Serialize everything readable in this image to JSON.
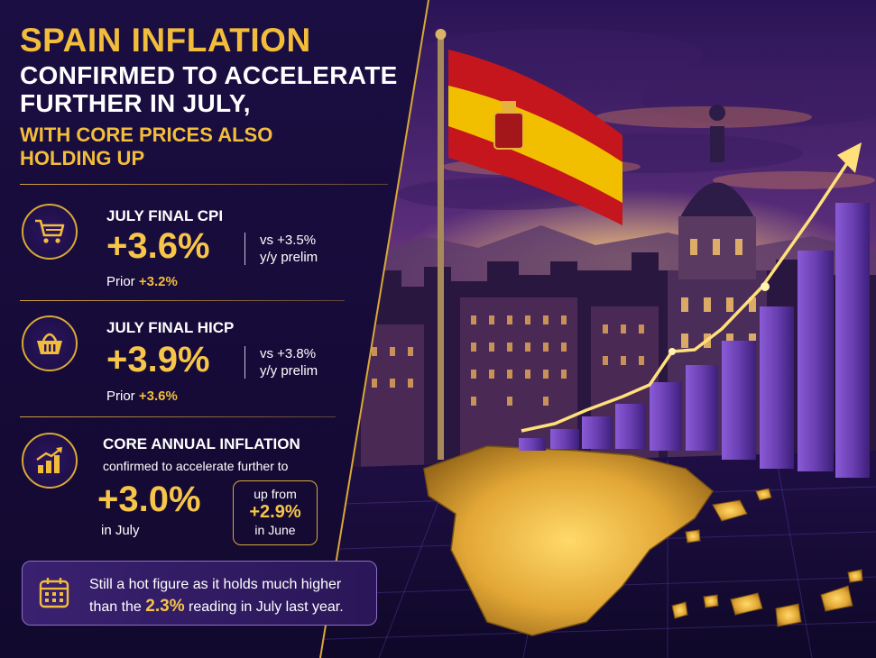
{
  "headline": {
    "line1": "SPAIN INFLATION",
    "line2": "CONFIRMED TO ACCELERATE",
    "line3": "FURTHER IN JULY,",
    "line4": "WITH CORE PRICES ALSO",
    "line5": "HOLDING UP"
  },
  "cpi": {
    "icon": "shopping-cart-icon",
    "label": "JULY FINAL CPI",
    "value": "+3.6%",
    "compare_line1": "vs +3.5%",
    "compare_line2": "y/y prelim",
    "prior_label": "Prior",
    "prior_value": "+3.2%"
  },
  "hicp": {
    "icon": "shopping-basket-icon",
    "label": "JULY FINAL HICP",
    "value": "+3.9%",
    "compare_line1": "vs +3.8%",
    "compare_line2": "y/y prelim",
    "prior_label": "Prior",
    "prior_value": "+3.6%"
  },
  "core": {
    "icon": "rising-bar-chart-icon",
    "label": "CORE ANNUAL INFLATION",
    "subtitle": "confirmed to accelerate further to",
    "value": "+3.0%",
    "period": "in July",
    "up_from_label": "up from",
    "up_from_value": "+2.9%",
    "up_from_period": "in June"
  },
  "note": {
    "icon": "calendar-icon",
    "line1": "Still a hot figure as it holds much higher",
    "line2_pre": "than the",
    "line2_value": "2.3%",
    "line2_post": "reading in July last year."
  },
  "colors": {
    "gold": "#f3bd3c",
    "navy_panel": "#1b0e42",
    "purple_bar": "#6a3fb2",
    "flag_red": "#c4161c",
    "flag_yellow": "#f1bf00"
  }
}
